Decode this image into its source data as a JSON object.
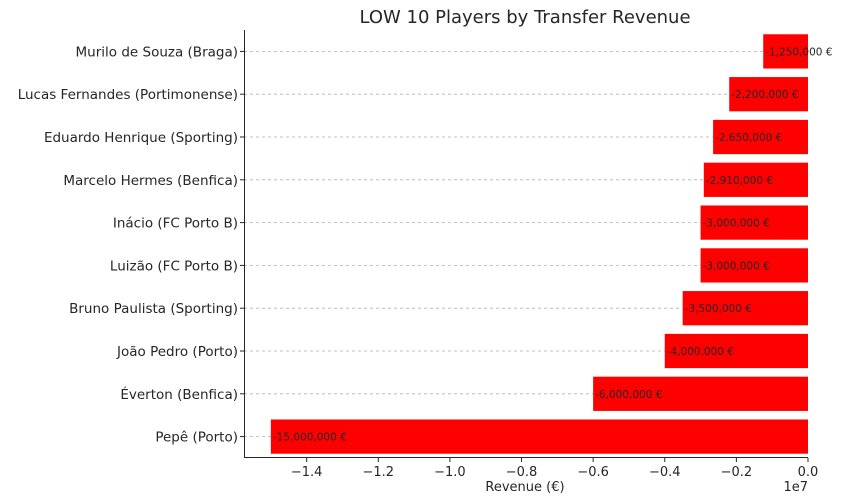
{
  "chart_data": {
    "type": "bar",
    "orientation": "horizontal",
    "title": "LOW 10 Players by Transfer Revenue",
    "xlabel": "Revenue (€)",
    "ylabel": "",
    "x_offset_label": "1e7",
    "xlim": [
      -15750000,
      0
    ],
    "xticks": [
      -14000000,
      -12000000,
      -10000000,
      -8000000,
      -6000000,
      -4000000,
      -2000000,
      0
    ],
    "xtick_labels": [
      "−1.4",
      "−1.2",
      "−1.0",
      "−0.8",
      "−0.6",
      "−0.4",
      "−0.2",
      "0.0"
    ],
    "grid": true,
    "bar_color": "#ff0000",
    "categories": [
      "Murilo de Souza (Braga)",
      "Lucas Fernandes (Portimonense)",
      "Eduardo Henrique (Sporting)",
      "Marcelo Hermes (Benfica)",
      "Inácio (FC Porto B)",
      "Luizão (FC Porto B)",
      "Bruno Paulista (Sporting)",
      "João Pedro (Porto)",
      "Éverton (Benfica)",
      "Pepê (Porto)"
    ],
    "values": [
      -1250000,
      -2200000,
      -2650000,
      -2910000,
      -3000000,
      -3000000,
      -3500000,
      -4000000,
      -6000000,
      -15000000
    ],
    "data_labels": [
      "-1,250,000 €",
      "-2,200,000 €",
      "-2,650,000 €",
      "-2,910,000 €",
      "-3,000,000 €",
      "-3,000,000 €",
      "-3,500,000 €",
      "-4,000,000 €",
      "-6,000,000 €",
      "-15,000,000 €"
    ]
  }
}
